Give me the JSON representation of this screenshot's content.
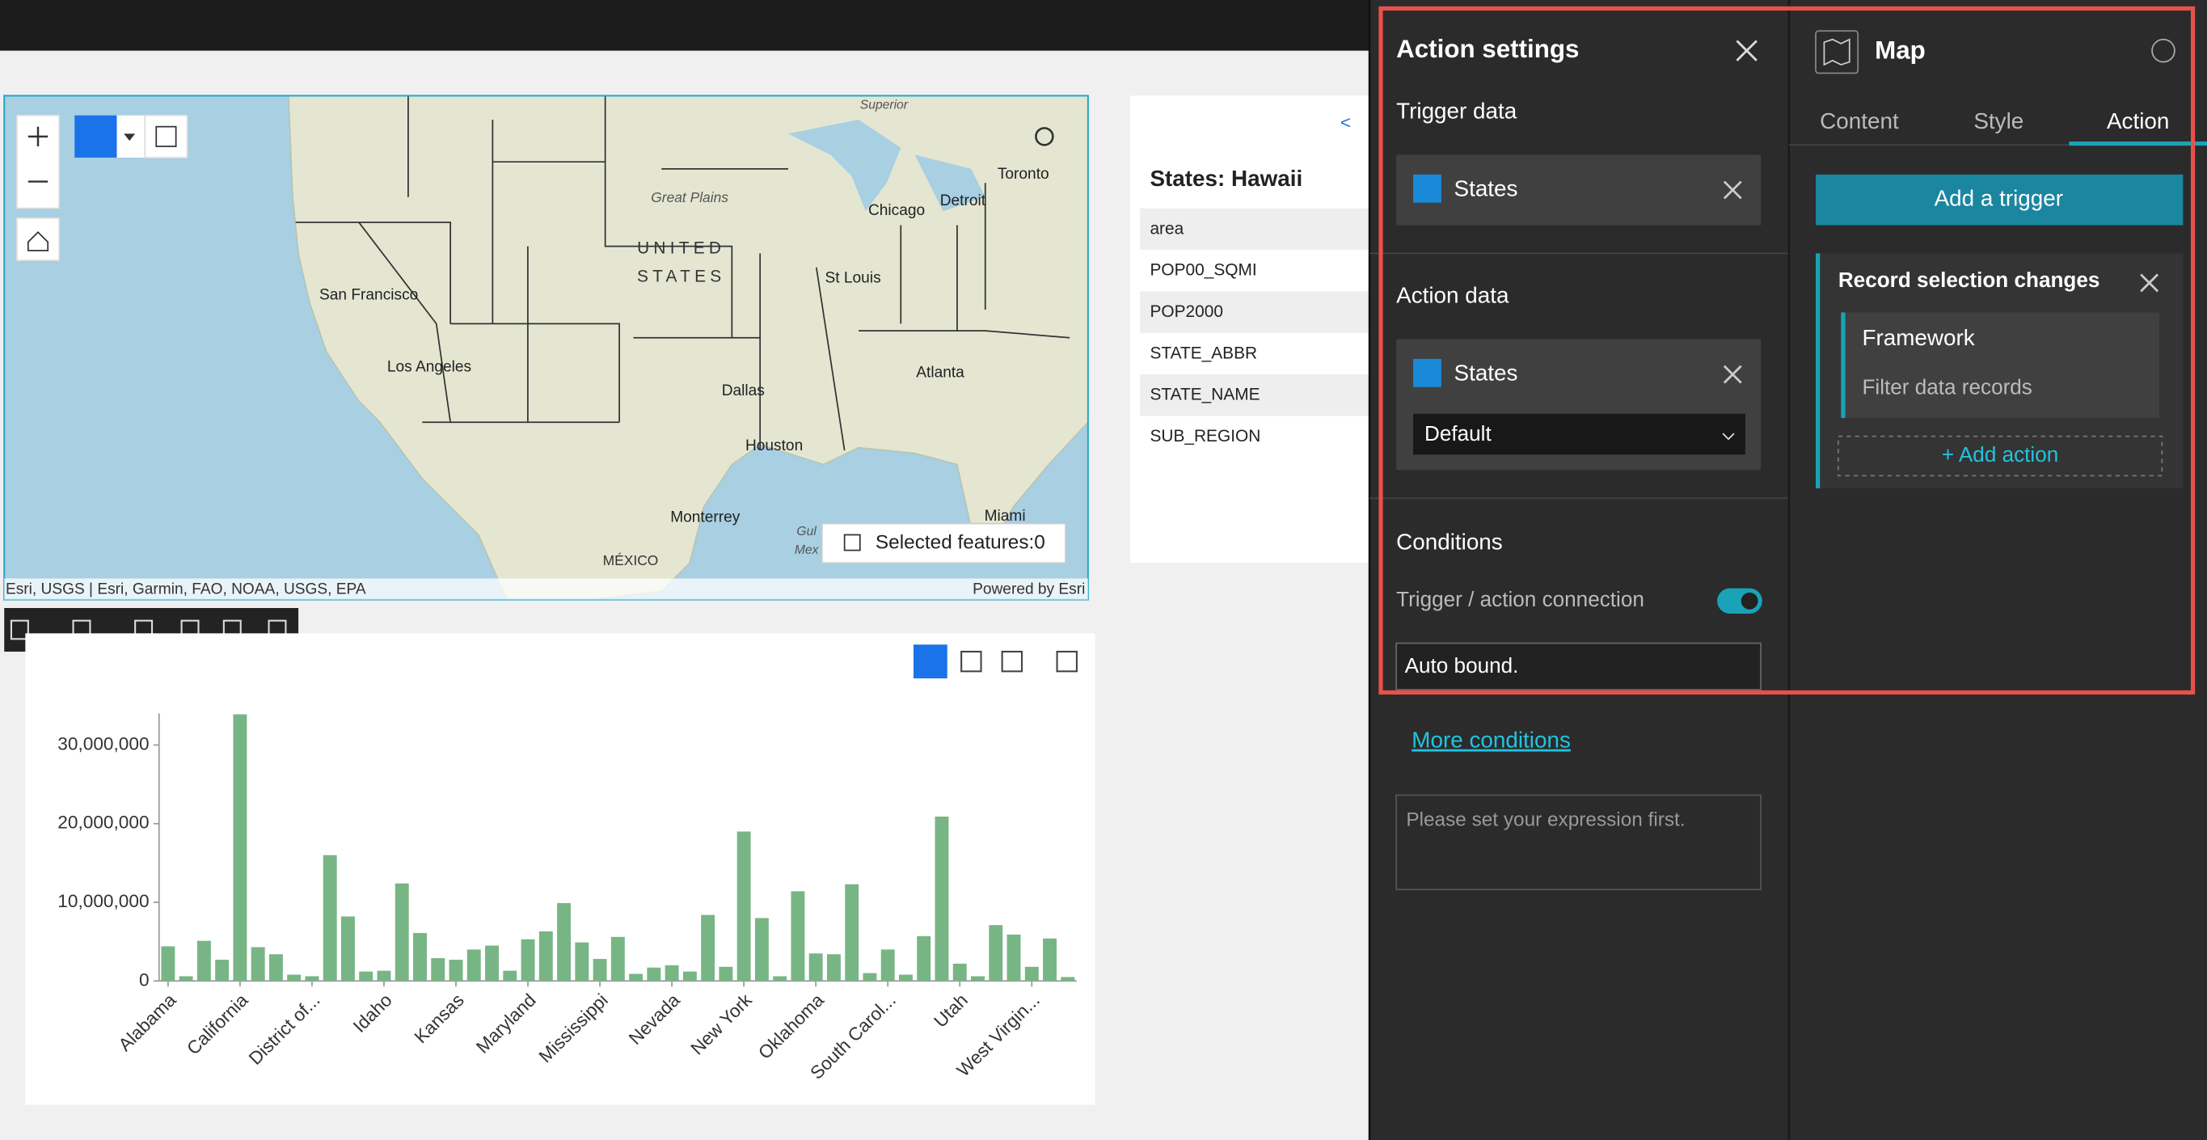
{
  "map": {
    "labels": [
      "Superior",
      "Great Plains",
      "UNITED",
      "STATES",
      "Toronto",
      "Chicago",
      "Detroit",
      "San Francisco",
      "St Louis",
      "Los Angeles",
      "Dallas",
      "Atlanta",
      "Houston",
      "Miami",
      "Monterrey",
      "MÉXICO",
      "Gul",
      "Mex"
    ],
    "attribution": "Esri, USGS | Esri, Garmin, FAO, NOAA, USGS, EPA",
    "powered_by": "Powered by Esri",
    "selected_features": "Selected features:0"
  },
  "table": {
    "back": "<",
    "title": "States: Hawaii",
    "fields": [
      "area",
      "POP00_SQMI",
      "POP2000",
      "STATE_ABBR",
      "STATE_NAME",
      "SUB_REGION"
    ]
  },
  "chart_data": {
    "type": "bar",
    "color": "#78b584",
    "categories": [
      "Alabama",
      null,
      null,
      null,
      "California",
      null,
      null,
      null,
      "District of...",
      null,
      null,
      null,
      "Idaho",
      null,
      null,
      null,
      "Kansas",
      null,
      null,
      null,
      "Maryland",
      null,
      null,
      null,
      "Mississippi",
      null,
      null,
      null,
      "Nevada",
      null,
      null,
      null,
      "New York",
      null,
      null,
      null,
      "Oklahoma",
      null,
      null,
      null,
      "South Carol...",
      null,
      null,
      null,
      "Utah",
      null,
      null,
      null,
      "West Virgin...",
      null,
      null
    ],
    "values": [
      4400000,
      600000,
      5100000,
      2700000,
      33900000,
      4300000,
      3400000,
      800000,
      600000,
      16000000,
      8200000,
      1200000,
      1300000,
      12400000,
      6100000,
      2900000,
      2700000,
      4000000,
      4500000,
      1300000,
      5300000,
      6300000,
      9900000,
      4900000,
      2800000,
      5600000,
      900000,
      1700000,
      2000000,
      1200000,
      8400000,
      1800000,
      19000000,
      8000000,
      600000,
      11400000,
      3500000,
      3400000,
      12300000,
      1000000,
      4000000,
      800000,
      5700000,
      20900000,
      2200000,
      600000,
      7100000,
      5900000,
      1800000,
      5400000,
      500000
    ],
    "ylim": [
      0,
      34000000
    ],
    "yticks": [
      0,
      {
        "value": 10000000,
        "label": "10,000,000"
      },
      {
        "value": 20000000,
        "label": "20,000,000"
      },
      {
        "value": 30000000,
        "label": "30,000,000"
      }
    ]
  },
  "action_settings": {
    "title": "Action settings",
    "trigger_data": {
      "label": "Trigger data",
      "layer": "States"
    },
    "action_data": {
      "label": "Action data",
      "layer": "States",
      "view": "Default"
    },
    "conditions": {
      "label": "Conditions",
      "connection": "Trigger / action connection",
      "connection_value": "Auto bound.",
      "more": "More conditions",
      "expression_placeholder": "Please set your expression first."
    }
  },
  "map_settings": {
    "title": "Map",
    "tabs": [
      "Content",
      "Style",
      "Action"
    ],
    "add_trigger": "Add a trigger",
    "trigger": {
      "title": "Record selection changes",
      "widget": "Framework",
      "action": "Filter data records",
      "add_action": "+ Add action"
    }
  }
}
